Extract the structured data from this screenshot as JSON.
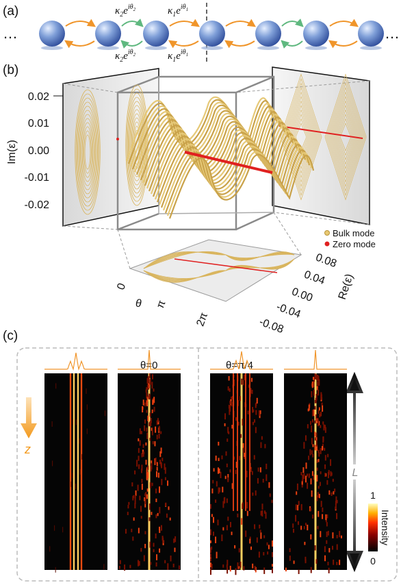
{
  "panel_a": {
    "label": "(a)",
    "ellipsis": "…",
    "couplings": [
      {
        "base": "κ",
        "index": "2",
        "exp": "e",
        "phase": "iθ",
        "phase_index": "2"
      },
      {
        "base": "κ",
        "index": "1",
        "exp": "e",
        "phase": "iθ",
        "phase_index": "1"
      },
      {
        "base": "κ",
        "index": "2",
        "exp": "e",
        "phase": "iθ",
        "phase_index": "2"
      },
      {
        "base": "κ",
        "index": "1",
        "exp": "e",
        "phase": "iθ",
        "phase_index": "1"
      }
    ]
  },
  "panel_b": {
    "label": "(b)",
    "y_axis_title": "Im(ε)",
    "y_ticks": [
      "0.02",
      "0.01",
      "0.00",
      "-0.01",
      "-0.02"
    ],
    "x_axis_title": "θ",
    "x_ticks": [
      "0",
      "π",
      "2π"
    ],
    "z_axis_title": "Re(ε)",
    "z_ticks": [
      "0.08",
      "0.04",
      "0.00",
      "-0.04",
      "-0.08"
    ],
    "legend": [
      "Bulk mode",
      "Zero mode"
    ]
  },
  "panel_c": {
    "label": "(c)",
    "titles": [
      "θ=0",
      "θ=π/4"
    ],
    "propagation_label": "z",
    "length_label": "L",
    "colorbar": {
      "title": "Intensity",
      "max": "1",
      "min": "0"
    }
  }
}
